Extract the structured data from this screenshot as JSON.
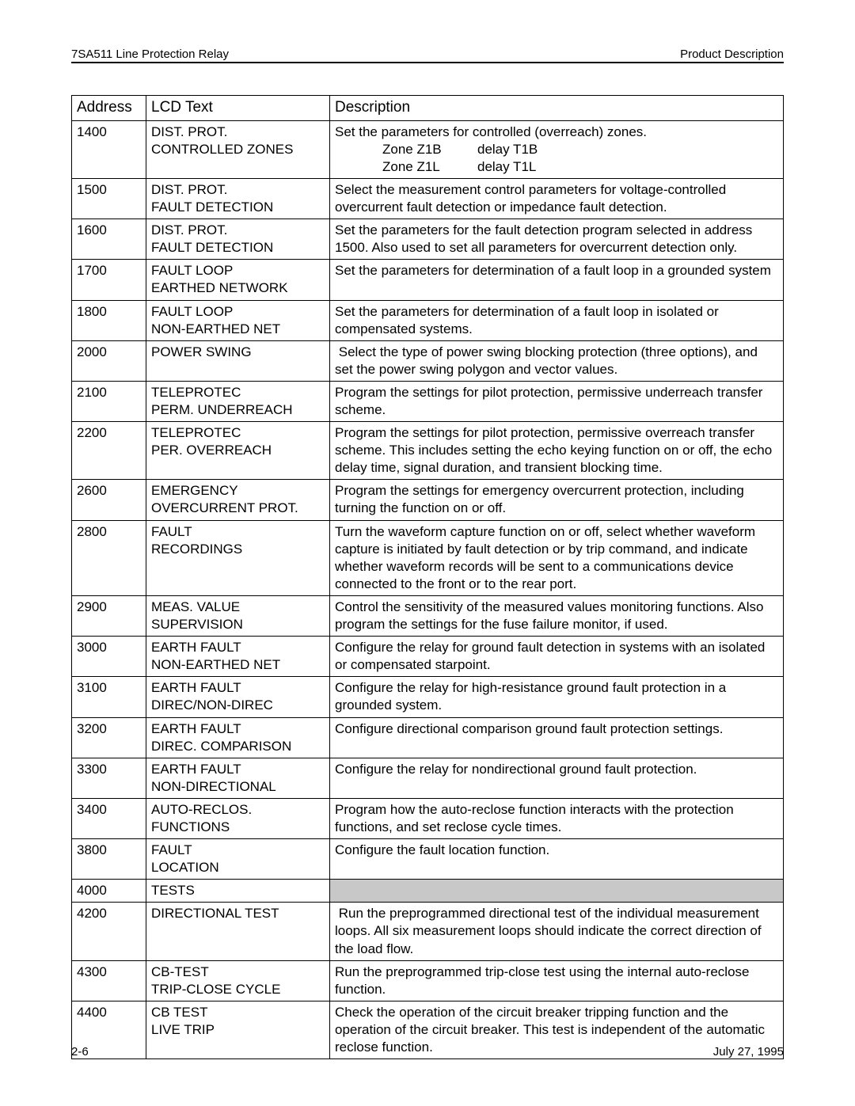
{
  "header": {
    "left": "7SA511 Line Protection Relay",
    "right": "Product Description"
  },
  "footer": {
    "left": "2-6",
    "right": "July 27, 1995"
  },
  "columns": {
    "address": "Address",
    "lcd": "LCD Text",
    "desc": "Description"
  },
  "zones": {
    "z1b": "Zone Z1B",
    "t1b": "delay T1B",
    "z1l": "Zone Z1L",
    "t1l": "delay T1L"
  },
  "rows": [
    {
      "addr": "1400",
      "lcd": "DIST. PROT.\nCONTROLLED ZONES",
      "desc": "Set the parameters for controlled (overreach) zones.",
      "zones": true
    },
    {
      "addr": "1500",
      "lcd": "DIST. PROT.\nFAULT DETECTION",
      "desc": "Select the measurement control parameters for voltage-controlled overcurrent fault detection or impedance fault detection."
    },
    {
      "addr": "1600",
      "lcd": "DIST. PROT.\nFAULT DETECTION",
      "desc": "Set the parameters for the fault detection program selected in address 1500. Also used to set all parameters for overcurrent detection only."
    },
    {
      "addr": "1700",
      "lcd": "FAULT LOOP\nEARTHED NETWORK",
      "desc": "Set the parameters for determination of a fault loop in a grounded system"
    },
    {
      "addr": "1800",
      "lcd": "FAULT LOOP\nNON-EARTHED NET",
      "desc": "Set the parameters for determination of a fault loop in isolated or compensated systems."
    },
    {
      "addr": "2000",
      "lcd": "POWER SWING",
      "desc": " Select the type of power swing blocking protection (three options), and set the power swing polygon and vector values."
    },
    {
      "addr": "2100",
      "lcd": "TELEPROTEC\nPERM. UNDERREACH",
      "desc": "Program the settings for pilot protection, permissive underreach transfer scheme."
    },
    {
      "addr": "2200",
      "lcd": "TELEPROTEC\nPER. OVERREACH",
      "desc": "Program the settings for pilot protection, permissive overreach transfer scheme. This includes setting the echo keying function on or off, the echo delay time, signal duration, and transient blocking time."
    },
    {
      "addr": "2600",
      "lcd": "EMERGENCY\nOVERCURRENT PROT.",
      "desc": "Program the settings for emergency overcurrent protection, including turning the function on or off."
    },
    {
      "addr": "2800",
      "lcd": "FAULT\nRECORDINGS",
      "desc": "Turn the waveform capture function on or off, select whether waveform capture is initiated by fault detection or by trip command, and indicate whether waveform records will be sent to a communications device connected to the front or to the rear port."
    },
    {
      "addr": "2900",
      "lcd": "MEAS. VALUE\nSUPERVISION",
      "desc": "Control the sensitivity of the measured values monitoring functions. Also program the settings for the fuse failure monitor, if used."
    },
    {
      "addr": "3000",
      "lcd": "EARTH FAULT\nNON-EARTHED NET",
      "desc": "Configure the relay for ground fault detection in systems with an isolated or compensated starpoint."
    },
    {
      "addr": "3100",
      "lcd": "EARTH FAULT\nDIREC/NON-DIREC",
      "desc": "Configure the relay for high-resistance ground fault protection in a grounded system."
    },
    {
      "addr": "3200",
      "lcd": "EARTH FAULT\nDIREC. COMPARISON",
      "desc": "Configure directional comparison ground fault protection settings."
    },
    {
      "addr": "3300",
      "lcd": "EARTH FAULT\nNON-DIRECTIONAL",
      "desc": "Configure the relay for nondirectional ground fault protection."
    },
    {
      "addr": "3400",
      "lcd": "AUTO-RECLOS.\nFUNCTIONS",
      "desc": "Program how the auto-reclose function interacts with the protection functions, and set reclose cycle times."
    },
    {
      "addr": "3800",
      "lcd": "FAULT\nLOCATION",
      "desc": "Configure the fault location function."
    },
    {
      "addr": "4000",
      "lcd": "TESTS",
      "desc": "",
      "shaded": true
    },
    {
      "addr": "4200",
      "lcd": "DIRECTIONAL TEST",
      "desc": " Run the preprogrammed directional test of the individual measurement loops. All six measurement loops should indicate the correct direction of the load flow."
    },
    {
      "addr": "4300",
      "lcd": "CB-TEST\nTRIP-CLOSE CYCLE",
      "desc": "Run the preprogrammed trip-close test using the internal auto-reclose function."
    },
    {
      "addr": "4400",
      "lcd": "CB TEST\nLIVE TRIP",
      "desc": "Check the operation of the circuit breaker tripping function and the operation of the circuit breaker. This test is independent of the automatic reclose function."
    }
  ]
}
